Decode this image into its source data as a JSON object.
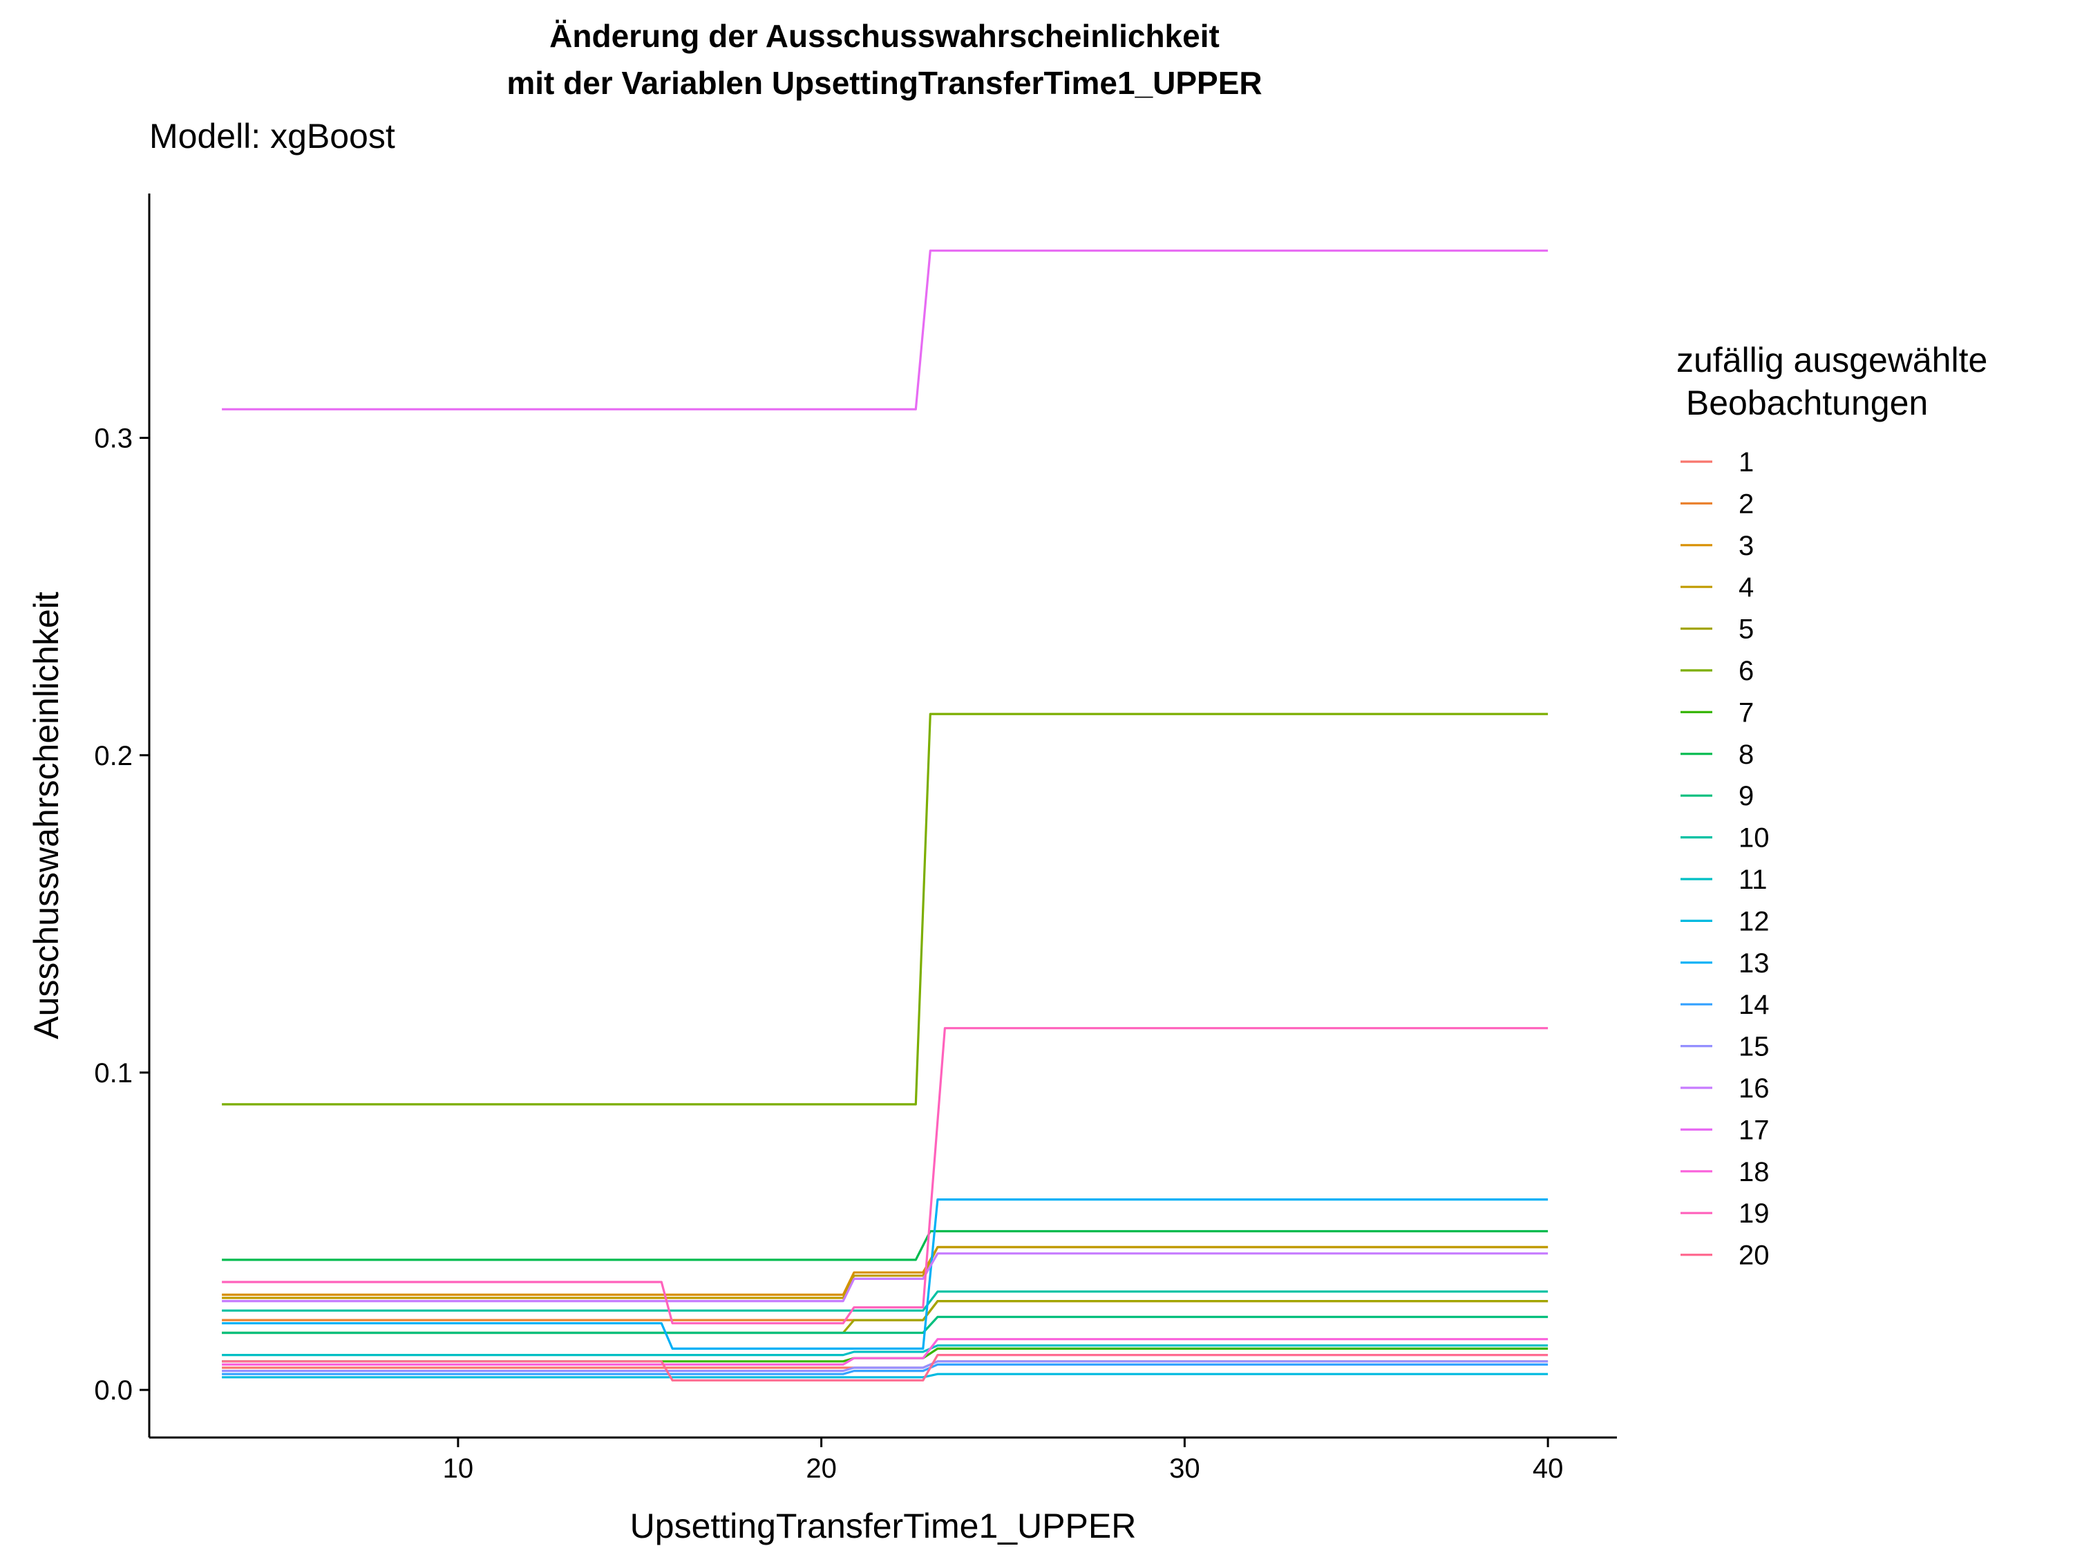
{
  "chart_data": {
    "type": "line",
    "title_line1": "Änderung der Ausschusswahrscheinlichkeit",
    "title_line2": "mit der Variablen UpsettingTransferTime1_UPPER",
    "subtitle": "Modell: xgBoost",
    "xlabel": "UpsettingTransferTime1_UPPER",
    "ylabel": "Ausschusswahrscheinlichkeit",
    "xlim": [
      1.5,
      41.9
    ],
    "ylim": [
      -0.015,
      0.377
    ],
    "x_ticks": [
      10,
      20,
      30,
      40
    ],
    "x_tick_labels": [
      "10",
      "20",
      "30",
      "40"
    ],
    "y_ticks": [
      0.0,
      0.1,
      0.2,
      0.3
    ],
    "y_tick_labels": [
      "0.0",
      "0.1",
      "0.2",
      "0.3"
    ],
    "grid": false,
    "legend": {
      "title_line1": "zufällig ausgewählte",
      "title_line2": " Beobachtungen",
      "placement": "right"
    },
    "series": [
      {
        "name": "1",
        "color": "#F8766D",
        "x": [
          3.5,
          15.6,
          15.9,
          20.6,
          20.9,
          22.8,
          23.2,
          40
        ],
        "y": [
          0.007,
          0.007,
          0.007,
          0.007,
          0.007,
          0.007,
          0.009,
          0.009
        ]
      },
      {
        "name": "2",
        "color": "#EA8331",
        "x": [
          3.5,
          15.6,
          15.9,
          20.6,
          20.9,
          22.8,
          23.2,
          40
        ],
        "y": [
          0.022,
          0.022,
          0.022,
          0.022,
          0.022,
          0.022,
          0.028,
          0.028
        ]
      },
      {
        "name": "3",
        "color": "#D89000",
        "x": [
          3.5,
          15.6,
          15.9,
          20.6,
          20.9,
          22.8,
          23.2,
          40
        ],
        "y": [
          0.03,
          0.03,
          0.03,
          0.03,
          0.037,
          0.037,
          0.045,
          0.045
        ]
      },
      {
        "name": "4",
        "color": "#C09B00",
        "x": [
          3.5,
          15.6,
          15.9,
          20.6,
          20.9,
          22.8,
          23.2,
          40
        ],
        "y": [
          0.029,
          0.029,
          0.029,
          0.029,
          0.036,
          0.036,
          0.045,
          0.045
        ]
      },
      {
        "name": "5",
        "color": "#A3A500",
        "x": [
          3.5,
          15.6,
          15.9,
          20.6,
          20.9,
          22.8,
          23.2,
          40
        ],
        "y": [
          0.018,
          0.018,
          0.018,
          0.018,
          0.022,
          0.022,
          0.028,
          0.028
        ]
      },
      {
        "name": "6",
        "color": "#7CAE00",
        "x": [
          3.5,
          15.6,
          15.9,
          20.6,
          20.9,
          22.6,
          23.0,
          40
        ],
        "y": [
          0.09,
          0.09,
          0.09,
          0.09,
          0.09,
          0.09,
          0.213,
          0.213
        ]
      },
      {
        "name": "7",
        "color": "#39B600",
        "x": [
          3.5,
          15.6,
          15.9,
          20.6,
          20.9,
          22.8,
          23.2,
          40
        ],
        "y": [
          0.009,
          0.009,
          0.009,
          0.009,
          0.01,
          0.01,
          0.013,
          0.013
        ]
      },
      {
        "name": "8",
        "color": "#00BB4E",
        "x": [
          3.5,
          15.6,
          15.9,
          20.6,
          20.9,
          22.6,
          23.0,
          40
        ],
        "y": [
          0.041,
          0.041,
          0.041,
          0.041,
          0.041,
          0.041,
          0.05,
          0.05
        ]
      },
      {
        "name": "9",
        "color": "#00BF7D",
        "x": [
          3.5,
          15.6,
          15.9,
          20.6,
          20.9,
          22.8,
          23.2,
          40
        ],
        "y": [
          0.018,
          0.018,
          0.018,
          0.018,
          0.018,
          0.018,
          0.023,
          0.023
        ]
      },
      {
        "name": "10",
        "color": "#00C1A3",
        "x": [
          3.5,
          15.6,
          15.9,
          20.6,
          20.9,
          22.8,
          23.2,
          40
        ],
        "y": [
          0.025,
          0.025,
          0.025,
          0.025,
          0.025,
          0.025,
          0.031,
          0.031
        ]
      },
      {
        "name": "11",
        "color": "#00BFC4",
        "x": [
          3.5,
          15.6,
          15.9,
          20.6,
          20.9,
          22.8,
          23.2,
          40
        ],
        "y": [
          0.011,
          0.011,
          0.011,
          0.011,
          0.012,
          0.012,
          0.014,
          0.014
        ]
      },
      {
        "name": "12",
        "color": "#00BAE0",
        "x": [
          3.5,
          15.6,
          15.9,
          20.6,
          20.9,
          22.8,
          23.2,
          40
        ],
        "y": [
          0.004,
          0.004,
          0.004,
          0.004,
          0.004,
          0.004,
          0.005,
          0.005
        ]
      },
      {
        "name": "13",
        "color": "#00B0F6",
        "x": [
          3.5,
          15.6,
          15.9,
          20.6,
          20.9,
          22.8,
          23.2,
          40
        ],
        "y": [
          0.021,
          0.021,
          0.013,
          0.013,
          0.013,
          0.013,
          0.06,
          0.06
        ]
      },
      {
        "name": "14",
        "color": "#35A2FF",
        "x": [
          3.5,
          15.6,
          15.9,
          20.6,
          20.9,
          22.8,
          23.2,
          40
        ],
        "y": [
          0.005,
          0.005,
          0.005,
          0.005,
          0.006,
          0.006,
          0.008,
          0.008
        ]
      },
      {
        "name": "15",
        "color": "#9590FF",
        "x": [
          3.5,
          15.6,
          15.9,
          20.6,
          20.9,
          22.8,
          23.2,
          40
        ],
        "y": [
          0.006,
          0.006,
          0.006,
          0.006,
          0.007,
          0.007,
          0.009,
          0.009
        ]
      },
      {
        "name": "16",
        "color": "#C77CFF",
        "x": [
          3.5,
          15.6,
          15.9,
          20.6,
          20.9,
          22.8,
          23.2,
          40
        ],
        "y": [
          0.028,
          0.028,
          0.028,
          0.028,
          0.035,
          0.035,
          0.043,
          0.043
        ]
      },
      {
        "name": "17",
        "color": "#E76BF3",
        "x": [
          3.5,
          15.6,
          15.9,
          20.6,
          20.9,
          22.6,
          23.0,
          40
        ],
        "y": [
          0.309,
          0.309,
          0.309,
          0.309,
          0.309,
          0.309,
          0.359,
          0.359
        ]
      },
      {
        "name": "18",
        "color": "#FA62DB",
        "x": [
          3.5,
          15.6,
          15.9,
          20.6,
          20.9,
          22.8,
          23.2,
          40
        ],
        "y": [
          0.008,
          0.008,
          0.008,
          0.008,
          0.01,
          0.01,
          0.016,
          0.016
        ]
      },
      {
        "name": "19",
        "color": "#FF62BC",
        "x": [
          3.5,
          15.6,
          15.9,
          20.6,
          20.9,
          22.8,
          23.4,
          40
        ],
        "y": [
          0.034,
          0.034,
          0.021,
          0.021,
          0.026,
          0.026,
          0.114,
          0.114
        ]
      },
      {
        "name": "20",
        "color": "#FF6C91",
        "x": [
          3.5,
          15.6,
          15.9,
          20.6,
          20.9,
          22.8,
          23.2,
          40
        ],
        "y": [
          0.009,
          0.009,
          0.003,
          0.003,
          0.003,
          0.003,
          0.011,
          0.011
        ]
      }
    ]
  }
}
